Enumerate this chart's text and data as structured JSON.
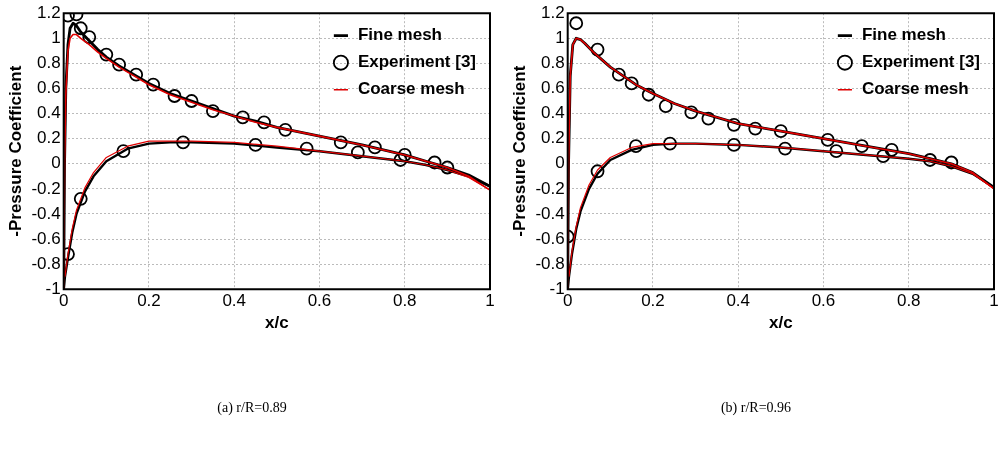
{
  "chart_data": [
    {
      "type": "line",
      "xlabel": "x/c",
      "ylabel": "-Pressure Coefficient",
      "xlim": [
        0,
        1
      ],
      "ylim": [
        -1,
        1.2
      ],
      "xticks": [
        0,
        0.2,
        0.4,
        0.6,
        0.8,
        1
      ],
      "yticks": [
        -1,
        -0.8,
        -0.6,
        -0.4,
        -0.2,
        0,
        0.2,
        0.4,
        0.6,
        0.8,
        1,
        1.2
      ],
      "grid": true,
      "legend": "top right",
      "annotations": [
        "(a)  r/R=0.89"
      ],
      "series": [
        {
          "name": "Fine mesh",
          "type": "line",
          "color": "#000000",
          "x": [
            0,
            0.002,
            0.005,
            0.01,
            0.015,
            0.022,
            0.03,
            0.04,
            0.06,
            0.08,
            0.1,
            0.13,
            0.16,
            0.2,
            0.25,
            0.3,
            0.35,
            0.4,
            0.45,
            0.5,
            0.6,
            0.7,
            0.8,
            0.85,
            0.9,
            0.95,
            1
          ],
          "values": [
            -1,
            0,
            0.6,
            0.95,
            1.08,
            1.12,
            1.1,
            1.05,
            0.98,
            0.91,
            0.85,
            0.78,
            0.72,
            0.64,
            0.56,
            0.5,
            0.44,
            0.38,
            0.34,
            0.29,
            0.22,
            0.15,
            0.07,
            0.02,
            -0.03,
            -0.09,
            -0.18
          ]
        },
        {
          "color": "#000000",
          "x": [
            0,
            0.003,
            0.01,
            0.02,
            0.03,
            0.05,
            0.07,
            0.1,
            0.15,
            0.2,
            0.25,
            0.3,
            0.4,
            0.5,
            0.6,
            0.7,
            0.8,
            0.85,
            0.9,
            0.95,
            1
          ],
          "values": [
            -1,
            -0.9,
            -0.75,
            -0.55,
            -0.4,
            -0.22,
            -0.1,
            0.02,
            0.12,
            0.16,
            0.17,
            0.17,
            0.16,
            0.13,
            0.1,
            0.06,
            0.02,
            -0.01,
            -0.05,
            -0.1,
            -0.18
          ]
        },
        {
          "name": "Experiment [3]",
          "type": "scatter",
          "marker": "circle",
          "color": "#000000",
          "x": [
            0.01,
            0.03,
            0.04,
            0.06,
            0.1,
            0.13,
            0.17,
            0.21,
            0.26,
            0.3,
            0.35,
            0.42,
            0.47,
            0.52,
            0.65,
            0.73,
            0.8,
            0.87,
            0.9,
            0.01,
            0.04,
            0.14,
            0.28,
            0.45,
            0.57,
            0.69,
            0.79
          ],
          "values": [
            1.18,
            1.19,
            1.08,
            1.01,
            0.87,
            0.79,
            0.71,
            0.63,
            0.54,
            0.5,
            0.42,
            0.37,
            0.33,
            0.27,
            0.17,
            0.13,
            0.07,
            0.01,
            -0.03,
            -0.72,
            -0.28,
            0.1,
            0.17,
            0.15,
            0.12,
            0.09,
            0.03
          ]
        },
        {
          "name": "Coarse mesh",
          "type": "line",
          "color": "#e00000",
          "x": [
            0,
            0.002,
            0.005,
            0.01,
            0.015,
            0.022,
            0.03,
            0.04,
            0.06,
            0.08,
            0.1,
            0.13,
            0.16,
            0.2,
            0.25,
            0.3,
            0.35,
            0.4,
            0.45,
            0.5,
            0.6,
            0.7,
            0.8,
            0.85,
            0.9,
            0.95,
            1
          ],
          "values": [
            -1,
            0,
            0.55,
            0.9,
            1.0,
            1.03,
            1.03,
            1.0,
            0.95,
            0.89,
            0.84,
            0.77,
            0.71,
            0.63,
            0.55,
            0.49,
            0.43,
            0.38,
            0.33,
            0.29,
            0.22,
            0.15,
            0.07,
            0.02,
            -0.03,
            -0.1,
            -0.21
          ]
        },
        {
          "color": "#e00000",
          "x": [
            0.003,
            0.01,
            0.02,
            0.03,
            0.05,
            0.07,
            0.1,
            0.15,
            0.2,
            0.25,
            0.3,
            0.4,
            0.5,
            0.6,
            0.7,
            0.8,
            0.85,
            0.9,
            0.95,
            1
          ],
          "values": [
            -0.9,
            -0.72,
            -0.52,
            -0.37,
            -0.19,
            -0.07,
            0.05,
            0.14,
            0.18,
            0.18,
            0.18,
            0.17,
            0.14,
            0.1,
            0.06,
            0.02,
            -0.01,
            -0.05,
            -0.11,
            -0.21
          ]
        }
      ]
    },
    {
      "type": "line",
      "xlabel": "x/c",
      "ylabel": "-Pressure Coefficient",
      "xlim": [
        0,
        1
      ],
      "ylim": [
        -1,
        1.2
      ],
      "xticks": [
        0,
        0.2,
        0.4,
        0.6,
        0.8,
        1
      ],
      "yticks": [
        -1,
        -0.8,
        -0.6,
        -0.4,
        -0.2,
        0,
        0.2,
        0.4,
        0.6,
        0.8,
        1,
        1.2
      ],
      "grid": true,
      "legend": "top right",
      "annotations": [
        "(b)  r/R=0.96"
      ],
      "series": [
        {
          "name": "Fine mesh",
          "type": "line",
          "color": "#000000",
          "x": [
            0,
            0.002,
            0.006,
            0.012,
            0.02,
            0.03,
            0.04,
            0.06,
            0.08,
            0.1,
            0.13,
            0.16,
            0.2,
            0.25,
            0.3,
            0.35,
            0.4,
            0.45,
            0.5,
            0.6,
            0.7,
            0.8,
            0.85,
            0.9,
            0.95,
            1
          ],
          "values": [
            -1,
            0,
            0.7,
            0.95,
            1.0,
            0.99,
            0.96,
            0.89,
            0.83,
            0.77,
            0.7,
            0.63,
            0.56,
            0.48,
            0.42,
            0.37,
            0.32,
            0.29,
            0.26,
            0.2,
            0.14,
            0.08,
            0.04,
            0,
            -0.07,
            -0.19
          ]
        },
        {
          "color": "#000000",
          "x": [
            0,
            0.003,
            0.01,
            0.02,
            0.03,
            0.05,
            0.07,
            0.1,
            0.15,
            0.2,
            0.25,
            0.3,
            0.4,
            0.5,
            0.6,
            0.7,
            0.8,
            0.85,
            0.9,
            0.95,
            1
          ],
          "values": [
            -1,
            -0.9,
            -0.72,
            -0.52,
            -0.38,
            -0.2,
            -0.08,
            0.03,
            0.11,
            0.15,
            0.16,
            0.16,
            0.15,
            0.13,
            0.1,
            0.07,
            0.04,
            0.02,
            -0.02,
            -0.08,
            -0.19
          ]
        },
        {
          "name": "Experiment [3]",
          "type": "scatter",
          "marker": "circle",
          "color": "#000000",
          "x": [
            0.02,
            0.07,
            0.12,
            0.15,
            0.19,
            0.23,
            0.29,
            0.33,
            0.39,
            0.44,
            0.5,
            0.61,
            0.69,
            0.76,
            0.85,
            0.9,
            0,
            0.07,
            0.16,
            0.24,
            0.39,
            0.51,
            0.63,
            0.74
          ],
          "values": [
            1.12,
            0.91,
            0.71,
            0.64,
            0.55,
            0.46,
            0.41,
            0.36,
            0.31,
            0.28,
            0.26,
            0.19,
            0.14,
            0.11,
            0.03,
            0.01,
            -0.58,
            -0.06,
            0.14,
            0.16,
            0.15,
            0.12,
            0.1,
            0.06
          ]
        },
        {
          "name": "Coarse mesh",
          "type": "line",
          "color": "#e00000",
          "x": [
            0,
            0.002,
            0.006,
            0.012,
            0.02,
            0.03,
            0.04,
            0.06,
            0.08,
            0.1,
            0.13,
            0.16,
            0.2,
            0.25,
            0.3,
            0.35,
            0.4,
            0.45,
            0.5,
            0.6,
            0.7,
            0.8,
            0.85,
            0.9,
            0.95,
            1
          ],
          "values": [
            -1,
            0,
            0.7,
            0.95,
            1.0,
            0.99,
            0.96,
            0.89,
            0.83,
            0.77,
            0.7,
            0.63,
            0.56,
            0.48,
            0.42,
            0.37,
            0.32,
            0.29,
            0.26,
            0.2,
            0.14,
            0.08,
            0.04,
            0,
            -0.07,
            -0.2
          ]
        },
        {
          "color": "#e00000",
          "x": [
            0.003,
            0.01,
            0.02,
            0.03,
            0.05,
            0.07,
            0.1,
            0.15,
            0.2,
            0.25,
            0.3,
            0.4,
            0.5,
            0.6,
            0.7,
            0.8,
            0.85,
            0.9,
            0.95,
            1
          ],
          "values": [
            -0.9,
            -0.7,
            -0.5,
            -0.35,
            -0.17,
            -0.05,
            0.05,
            0.13,
            0.16,
            0.16,
            0.16,
            0.15,
            0.13,
            0.1,
            0.07,
            0.04,
            0.02,
            -0.02,
            -0.08,
            -0.2
          ]
        }
      ]
    }
  ]
}
